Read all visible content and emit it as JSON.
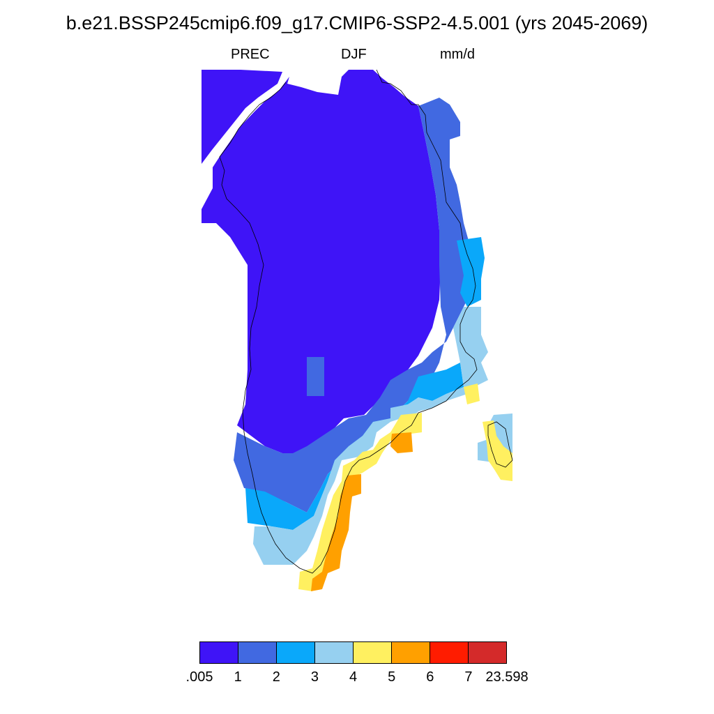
{
  "title": "b.e21.BSSP245cmip6.f09_g17.CMIP6-SSP2-4.5.001 (yrs 2045-2069)",
  "subtitle": {
    "variable": "PREC",
    "season": "DJF",
    "units": "mm/d"
  },
  "colorbar": {
    "colors": [
      "#3f14f7",
      "#4169e1",
      "#0aa8fa",
      "#96d0f0",
      "#fff060",
      "#ffa000",
      "#ff1c00",
      "#d42a2a"
    ],
    "labels": [
      ".005",
      "1",
      "2",
      "3",
      "4",
      "5",
      "6",
      "7",
      "23.598"
    ]
  },
  "map": {
    "region": "Greenland",
    "note_levels": "Cells colored by binned DJF precipitation level (index into colorbar.colors)"
  }
}
